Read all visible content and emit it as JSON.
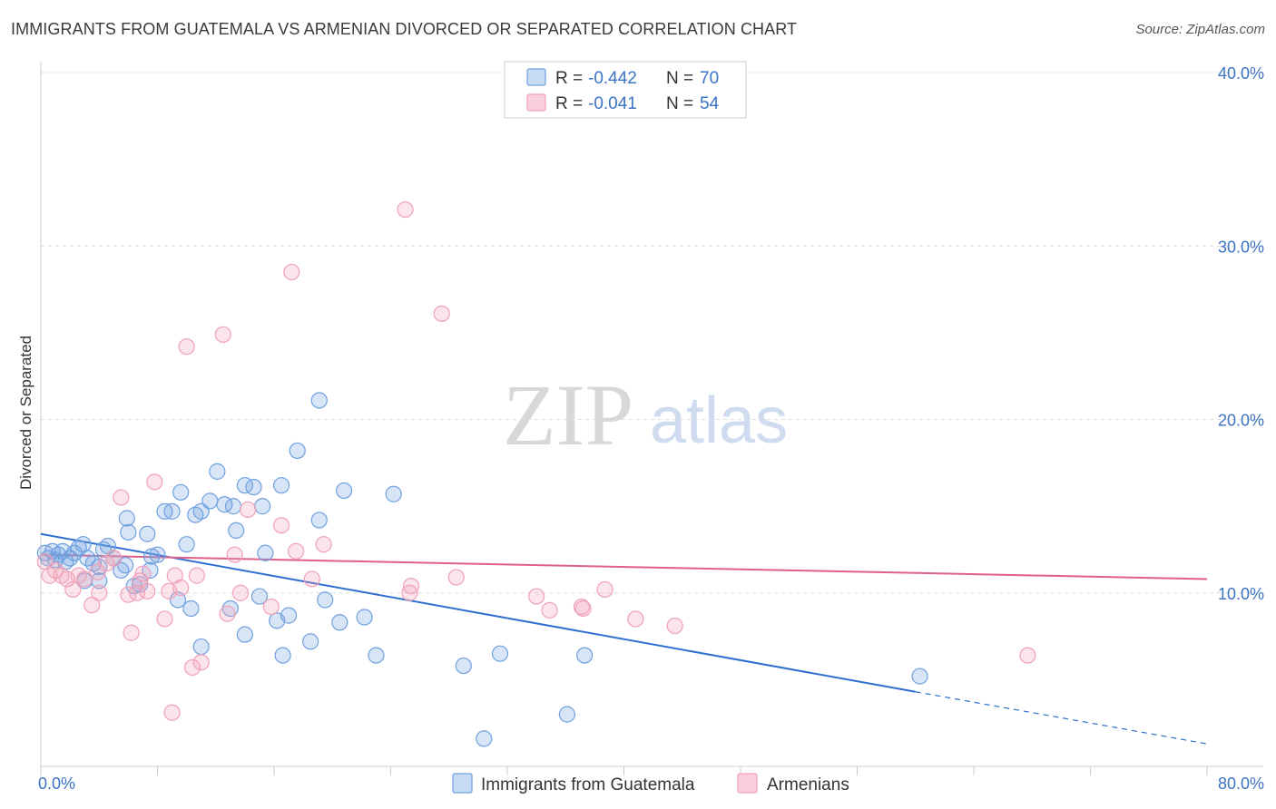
{
  "title": "IMMIGRANTS FROM GUATEMALA VS ARMENIAN DIVORCED OR SEPARATED CORRELATION CHART",
  "source": "Source: ZipAtlas.com",
  "watermark": {
    "zip": "ZIP",
    "atlas": "atlas"
  },
  "legend": {
    "rows": [
      {
        "r_label": "R = ",
        "r_value": "-0.442",
        "n_label": "N = ",
        "n_value": "70",
        "color": "#6fa0e0"
      },
      {
        "r_label": "R = ",
        "r_value": "-0.041",
        "n_label": "N = ",
        "n_value": "54",
        "color": "#f0a0b8"
      }
    ]
  },
  "bottom_legend": [
    {
      "label": "Immigrants from Guatemala",
      "color": "#6fa0e0"
    },
    {
      "label": "Armenians",
      "color": "#f0a0b8"
    }
  ],
  "chart_data": {
    "type": "scatter",
    "xlabel": "",
    "ylabel": "Divorced or Separated",
    "xlim": [
      0,
      80
    ],
    "ylim": [
      0,
      40
    ],
    "x_tick_labels": [
      "0.0%",
      "80.0%"
    ],
    "y_ticks": [
      10,
      20,
      30,
      40
    ],
    "y_tick_labels": [
      "10.0%",
      "20.0%",
      "30.0%",
      "40.0%"
    ],
    "grid": true,
    "series": [
      {
        "name": "Immigrants from Guatemala",
        "color": "#6fa0e0",
        "line_color": "#2f6fcf",
        "trend": {
          "x0": 0,
          "y0": 13.4,
          "x1": 60,
          "y1": 4.3,
          "dash_to_x": 80,
          "dash_to_y": 1.3
        },
        "points": [
          [
            0.3,
            12.3
          ],
          [
            0.5,
            12.0
          ],
          [
            0.8,
            12.4
          ],
          [
            1.0,
            11.9
          ],
          [
            1.2,
            12.2
          ],
          [
            1.5,
            12.4
          ],
          [
            1.7,
            11.8
          ],
          [
            2.0,
            12.0
          ],
          [
            2.3,
            12.3
          ],
          [
            2.6,
            12.6
          ],
          [
            2.9,
            12.8
          ],
          [
            3.2,
            12.0
          ],
          [
            3.6,
            11.7
          ],
          [
            4.0,
            11.5
          ],
          [
            4.3,
            12.5
          ],
          [
            4.6,
            12.7
          ],
          [
            5.0,
            12.0
          ],
          [
            5.5,
            11.3
          ],
          [
            3.0,
            10.7
          ],
          [
            4.0,
            10.7
          ],
          [
            6.0,
            13.5
          ],
          [
            5.8,
            11.6
          ],
          [
            6.4,
            10.4
          ],
          [
            6.8,
            10.5
          ],
          [
            7.3,
            13.4
          ],
          [
            7.6,
            12.1
          ],
          [
            8.0,
            12.2
          ],
          [
            5.9,
            14.3
          ],
          [
            8.5,
            14.7
          ],
          [
            9.0,
            14.7
          ],
          [
            9.6,
            15.8
          ],
          [
            10.0,
            12.8
          ],
          [
            10.6,
            14.5
          ],
          [
            11.0,
            14.7
          ],
          [
            11.6,
            15.3
          ],
          [
            12.1,
            17.0
          ],
          [
            12.6,
            15.1
          ],
          [
            13.2,
            15.0
          ],
          [
            13.4,
            13.6
          ],
          [
            14.0,
            16.2
          ],
          [
            14.6,
            16.1
          ],
          [
            15.2,
            15.0
          ],
          [
            16.5,
            16.2
          ],
          [
            17.6,
            18.2
          ],
          [
            19.1,
            21.1
          ],
          [
            19.1,
            14.2
          ],
          [
            20.8,
            15.9
          ],
          [
            24.2,
            15.7
          ],
          [
            9.4,
            9.6
          ],
          [
            10.3,
            9.1
          ],
          [
            11.0,
            6.9
          ],
          [
            13.0,
            9.1
          ],
          [
            14.0,
            7.6
          ],
          [
            15.0,
            9.8
          ],
          [
            16.2,
            8.4
          ],
          [
            17.0,
            8.7
          ],
          [
            16.6,
            6.4
          ],
          [
            18.5,
            7.2
          ],
          [
            19.5,
            9.6
          ],
          [
            20.5,
            8.3
          ],
          [
            22.2,
            8.6
          ],
          [
            23.0,
            6.4
          ],
          [
            29.0,
            5.8
          ],
          [
            31.5,
            6.5
          ],
          [
            37.3,
            6.4
          ],
          [
            30.4,
            1.6
          ],
          [
            36.1,
            3.0
          ],
          [
            60.3,
            5.2
          ],
          [
            15.4,
            12.3
          ],
          [
            7.5,
            11.3
          ]
        ]
      },
      {
        "name": "Armenians",
        "color": "#f0a0b8",
        "line_color": "#e0608a",
        "trend": {
          "x0": 0,
          "y0": 12.2,
          "x1": 80,
          "y1": 10.8
        },
        "points": [
          [
            0.3,
            11.8
          ],
          [
            0.6,
            11.0
          ],
          [
            1.0,
            11.3
          ],
          [
            1.4,
            11.0
          ],
          [
            1.8,
            10.8
          ],
          [
            2.2,
            10.2
          ],
          [
            2.6,
            11.0
          ],
          [
            3.0,
            10.8
          ],
          [
            3.5,
            9.3
          ],
          [
            4.0,
            10.0
          ],
          [
            4.5,
            11.7
          ],
          [
            5.0,
            12.0
          ],
          [
            5.5,
            15.5
          ],
          [
            6.0,
            9.9
          ],
          [
            6.2,
            7.7
          ],
          [
            6.6,
            10.0
          ],
          [
            7.0,
            11.1
          ],
          [
            7.3,
            10.1
          ],
          [
            7.8,
            16.4
          ],
          [
            8.5,
            8.5
          ],
          [
            8.8,
            10.1
          ],
          [
            9.2,
            11.0
          ],
          [
            9.6,
            10.3
          ],
          [
            10.0,
            24.2
          ],
          [
            10.4,
            5.7
          ],
          [
            10.7,
            11.0
          ],
          [
            11.0,
            6.0
          ],
          [
            9.0,
            3.1
          ],
          [
            12.5,
            24.9
          ],
          [
            12.8,
            8.8
          ],
          [
            13.3,
            12.2
          ],
          [
            13.7,
            10.0
          ],
          [
            14.2,
            14.8
          ],
          [
            15.8,
            9.2
          ],
          [
            16.5,
            13.9
          ],
          [
            17.2,
            28.5
          ],
          [
            17.5,
            12.4
          ],
          [
            18.6,
            10.8
          ],
          [
            19.4,
            12.8
          ],
          [
            25.0,
            32.1
          ],
          [
            25.3,
            10.0
          ],
          [
            25.4,
            10.4
          ],
          [
            27.5,
            26.1
          ],
          [
            28.5,
            10.9
          ],
          [
            34.0,
            9.8
          ],
          [
            34.9,
            9.0
          ],
          [
            37.1,
            9.2
          ],
          [
            37.2,
            9.1
          ],
          [
            38.7,
            10.2
          ],
          [
            40.8,
            8.5
          ],
          [
            43.5,
            8.1
          ],
          [
            67.7,
            6.4
          ],
          [
            6.8,
            10.7
          ],
          [
            3.9,
            11.2
          ]
        ]
      }
    ]
  }
}
